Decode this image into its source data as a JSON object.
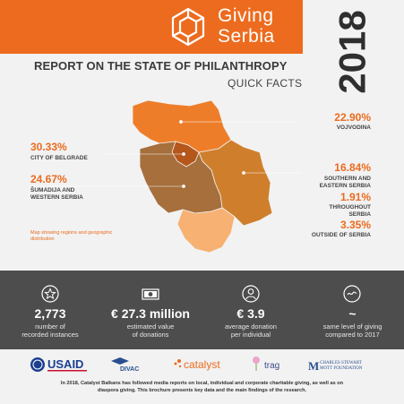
{
  "header": {
    "logo_word1": "Giving",
    "logo_word2": "Serbia",
    "year": "2018",
    "title": "REPORT ON THE STATE OF PHILANTHROPY",
    "subtitle": "QUICK FACTS",
    "accent_color": "#ec6b1e",
    "dark_color": "#4d4d4d"
  },
  "regions": [
    {
      "id": "vojvodina",
      "percent": "22.90%",
      "label": "VOJVODINA",
      "color": "#ee7d2a"
    },
    {
      "id": "belgrade",
      "percent": "30.33%",
      "label": "CITY OF BELGRADE",
      "color": "#b5561a"
    },
    {
      "id": "sumadija",
      "percent": "24.67%",
      "label_lines": [
        "ŠUMADIJA AND",
        "WESTERN SERBIA"
      ],
      "color": "#a66f3c"
    },
    {
      "id": "southeast",
      "percent": "16.84%",
      "label_lines": [
        "SOUTHERN AND",
        "EASTERN SERBIA"
      ],
      "color": "#cf7f2c"
    },
    {
      "id": "throughout",
      "percent": "1.91%",
      "label_lines": [
        "THROUGHOUT",
        "SERBIA"
      ]
    },
    {
      "id": "outside",
      "percent": "3.35%",
      "label": "OUTSIDE OF SERBIA",
      "color": "#f6b173"
    }
  ],
  "map_note": "Map showing regions and geographic distribution",
  "stats": [
    {
      "icon": "star-icon",
      "value": "2,773",
      "desc": [
        "number of",
        "recorded instances"
      ]
    },
    {
      "icon": "banknote-icon",
      "value": "€ 27.3 million",
      "desc": [
        "estimated value",
        "of donations"
      ]
    },
    {
      "icon": "person-icon",
      "value": "€ 3.9",
      "desc": [
        "average donation",
        "per individual"
      ]
    },
    {
      "icon": "tilde-icon",
      "value": "~",
      "desc": [
        "same level of giving",
        "compared to 2017"
      ]
    }
  ],
  "partners": {
    "usaid": "USAID",
    "divac": "DIVAC",
    "catalyst": "catalyst",
    "trag": "trag",
    "mott_line1": "CHARLES STEWART",
    "mott_line2": "MOTT FOUNDATION"
  },
  "footer": {
    "line1": "In 2018, Catalyst Balkans has followed media reports on local, individual and corporate charitable giving, as well as on",
    "line2": "diaspora giving. This brochure presents key data and the main findings of the research."
  }
}
